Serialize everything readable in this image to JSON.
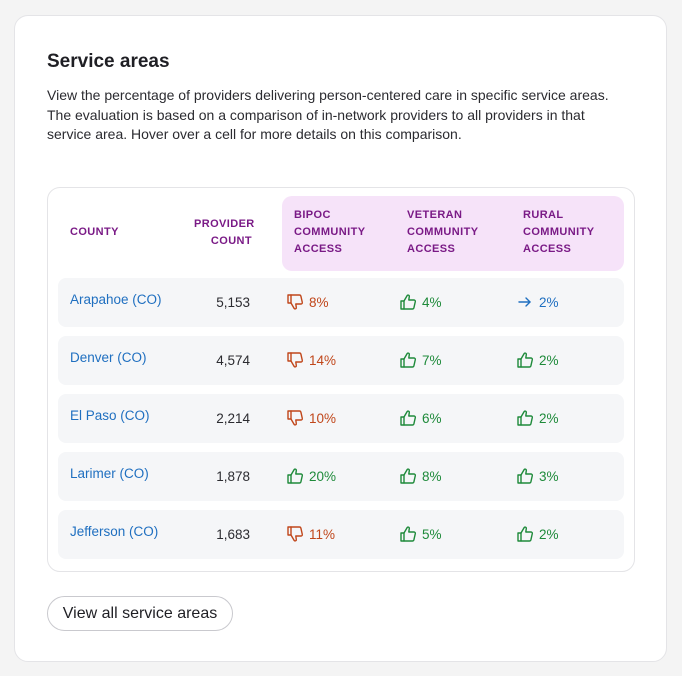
{
  "card": {
    "title": "Service areas",
    "description": "View the percentage of providers delivering person-centered care in specific service areas. The evaluation is based on a comparison of in-network providers to all providers in that service area. Hover over a cell for more details on this comparison."
  },
  "table": {
    "headers": {
      "county": "COUNTY",
      "provider_count_1": "PROVIDER",
      "provider_count_2": "COUNT",
      "bipoc_1": "BIPOC",
      "bipoc_2": "COMMUNITY",
      "bipoc_3": "ACCESS",
      "veteran_1": "VETERAN",
      "veteran_2": "COMMUNITY",
      "veteran_3": "ACCESS",
      "rural_1": "RURAL",
      "rural_2": "COMMUNITY",
      "rural_3": "ACCESS"
    },
    "rows": [
      {
        "county": "Arapahoe (CO)",
        "count": "5,153",
        "bipoc": {
          "value": "8%",
          "status": "down"
        },
        "veteran": {
          "value": "4%",
          "status": "up"
        },
        "rural": {
          "value": "2%",
          "status": "neutral"
        }
      },
      {
        "county": "Denver (CO)",
        "count": "4,574",
        "bipoc": {
          "value": "14%",
          "status": "down"
        },
        "veteran": {
          "value": "7%",
          "status": "up"
        },
        "rural": {
          "value": "2%",
          "status": "up"
        }
      },
      {
        "county": "El Paso (CO)",
        "count": "2,214",
        "bipoc": {
          "value": "10%",
          "status": "down"
        },
        "veteran": {
          "value": "6%",
          "status": "up"
        },
        "rural": {
          "value": "2%",
          "status": "up"
        }
      },
      {
        "county": "Larimer (CO)",
        "count": "1,878",
        "bipoc": {
          "value": "20%",
          "status": "up"
        },
        "veteran": {
          "value": "8%",
          "status": "up"
        },
        "rural": {
          "value": "3%",
          "status": "up"
        }
      },
      {
        "county": "Jefferson (CO)",
        "count": "1,683",
        "bipoc": {
          "value": "11%",
          "status": "down"
        },
        "veteran": {
          "value": "5%",
          "status": "up"
        },
        "rural": {
          "value": "2%",
          "status": "up"
        }
      }
    ]
  },
  "view_all_button": "View all service areas",
  "icons": {
    "up": "thumbs-up-icon",
    "down": "thumbs-down-icon",
    "neutral": "arrow-right-icon"
  },
  "colors": {
    "up": "#1e8a3a",
    "down": "#c0461a",
    "neutral": "#1f6fc0",
    "header_text": "#7a1a86",
    "header_highlight": "#f6e3f9",
    "link": "#1f6fc0"
  }
}
